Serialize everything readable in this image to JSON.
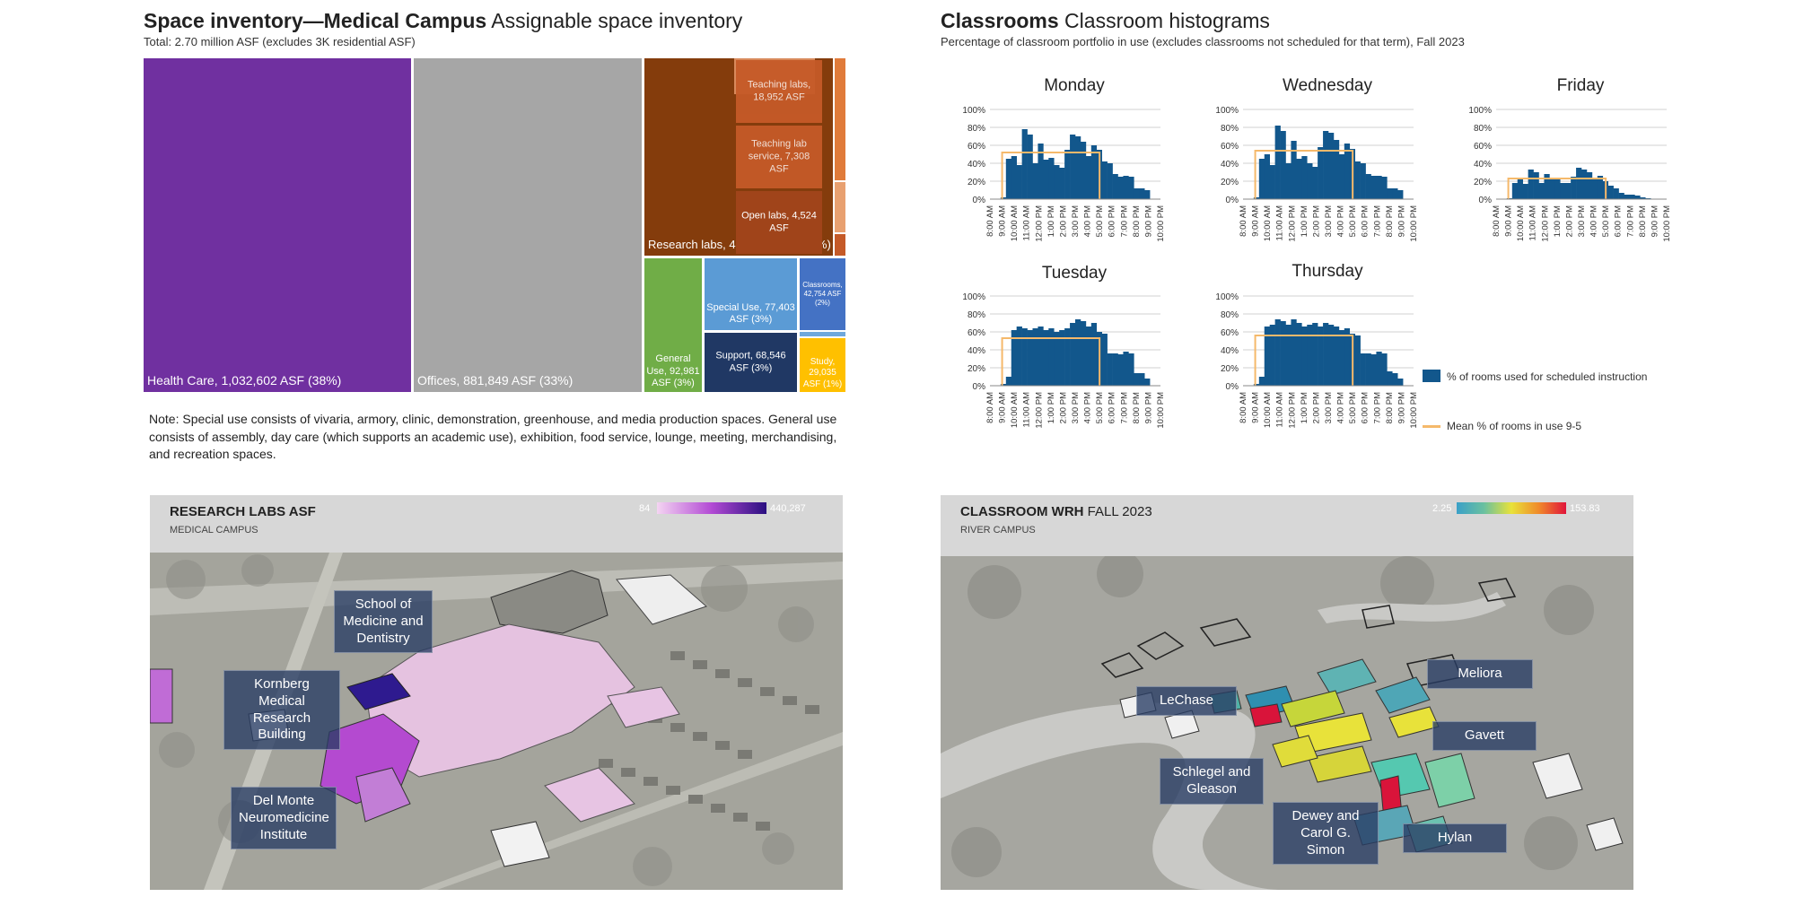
{
  "space": {
    "title_bold": "Space inventory—Medical Campus",
    "title_rest": " Assignable space inventory",
    "subtitle": "Total: 2.70 million ASF (excludes 3K residential ASF)",
    "note": "Note: Special use consists of vivaria, armory, clinic, demonstration, greenhouse, and media production spaces. General use consists of assembly, day care (which supports an academic use), exhibition, food service, lounge, meeting, merchandising, and recreation spaces."
  },
  "classrooms": {
    "title_bold": "Classrooms",
    "title_rest": " Classroom histograms",
    "subtitle": "Percentage of classroom portfolio in use (excludes classrooms not scheduled for that term), Fall 2023",
    "legend_bar": "% of rooms used for scheduled instruction",
    "legend_mean": "Mean % of rooms in use 9-5",
    "bar_color": "#12578c",
    "mean_color": "#f5b96b"
  },
  "research_map": {
    "title": "RESEARCH LABS ASF",
    "subtitle": "MEDICAL CAMPUS",
    "legend_min": "84",
    "legend_max": "440,287",
    "callouts": [
      "School of Medicine and Dentistry",
      "Kornberg Medical Research Building",
      "Del Monte Neuromedicine Institute"
    ]
  },
  "wrh_map": {
    "title": "CLASSROOM WRH",
    "title_suffix": " FALL 2023",
    "subtitle": "RIVER CAMPUS",
    "legend_min": "2.25",
    "legend_max": "153.83",
    "callouts": [
      "Meliora",
      "LeChase",
      "Gavett",
      "Schlegel and Gleason",
      "Dewey and Carol G. Simon",
      "Hylan"
    ]
  },
  "chart_data": [
    {
      "type": "treemap",
      "title": "Space inventory—Medical Campus Assignable space inventory",
      "unit": "ASF",
      "items": [
        {
          "label": "Health Care, 1,032,602 ASF (38%)",
          "value": 1032602,
          "color": "#7030a0"
        },
        {
          "label": "Offices, 881,849 ASF (33%)",
          "value": 881849,
          "color": "#a6a6a6"
        },
        {
          "label": "Research labs, 434,818 ASF (16%)",
          "value": 434818,
          "color": "#843c0c"
        },
        {
          "label": "Teaching labs, 18,952 ASF",
          "value": 18952,
          "color": "#c55a28"
        },
        {
          "label": "Teaching lab service, 7,308 ASF",
          "value": 7308,
          "color": "#c55a28"
        },
        {
          "label": "Open labs, 4,524 ASF",
          "value": 4524,
          "color": "#a0441a"
        },
        {
          "label": "General Use, 92,981 ASF (3%)",
          "value": 92981,
          "color": "#70ad47"
        },
        {
          "label": "Special Use, 77,403 ASF (3%)",
          "value": 77403,
          "color": "#5b9bd5"
        },
        {
          "label": "Support, 68,546 ASF (3%)",
          "value": 68546,
          "color": "#203864"
        },
        {
          "label": "Classrooms, 42,754 ASF (2%)",
          "value": 42754,
          "color": "#4472c4"
        },
        {
          "label": "Study, 29,035 ASF (1%)",
          "value": 29035,
          "color": "#ffc000"
        }
      ]
    },
    {
      "type": "bar",
      "title": "Monday",
      "ylim": [
        0,
        100
      ],
      "yticks": [
        "0%",
        "20%",
        "40%",
        "60%",
        "80%",
        "100%"
      ],
      "xticks": [
        "8:00 AM",
        "9:00 AM",
        "10:00 AM",
        "11:00 AM",
        "12:00 PM",
        "1:00 PM",
        "2:00 PM",
        "3:00 PM",
        "4:00 PM",
        "5:00 PM",
        "6:00 PM",
        "7:00 PM",
        "8:00 PM",
        "9:00 PM",
        "10:00 PM"
      ],
      "series": [
        {
          "name": "% of rooms used for scheduled instruction",
          "values": [
            0,
            0,
            2,
            45,
            48,
            38,
            78,
            72,
            40,
            62,
            44,
            46,
            38,
            35,
            55,
            72,
            70,
            64,
            48,
            60,
            55,
            42,
            40,
            28,
            25,
            26,
            25,
            12,
            12,
            10,
            0,
            0
          ]
        },
        {
          "name": "Mean % of rooms in use 9-5",
          "values": [
            52
          ]
        }
      ]
    },
    {
      "type": "bar",
      "title": "Wednesday",
      "ylim": [
        0,
        100
      ],
      "yticks": [
        "0%",
        "20%",
        "40%",
        "60%",
        "80%",
        "100%"
      ],
      "xticks": [
        "8:00 AM",
        "9:00 AM",
        "10:00 AM",
        "11:00 AM",
        "12:00 PM",
        "1:00 PM",
        "2:00 PM",
        "3:00 PM",
        "4:00 PM",
        "5:00 PM",
        "6:00 PM",
        "7:00 PM",
        "8:00 PM",
        "9:00 PM",
        "10:00 PM"
      ],
      "series": [
        {
          "name": "% of rooms used for scheduled instruction",
          "values": [
            0,
            0,
            2,
            45,
            50,
            38,
            82,
            76,
            40,
            65,
            45,
            48,
            40,
            36,
            58,
            76,
            74,
            66,
            50,
            62,
            56,
            42,
            40,
            28,
            26,
            26,
            25,
            12,
            12,
            10,
            0,
            0
          ]
        },
        {
          "name": "Mean % of rooms in use 9-5",
          "values": [
            54
          ]
        }
      ]
    },
    {
      "type": "bar",
      "title": "Friday",
      "ylim": [
        0,
        100
      ],
      "yticks": [
        "0%",
        "20%",
        "40%",
        "60%",
        "80%",
        "100%"
      ],
      "xticks": [
        "8:00 AM",
        "9:00 AM",
        "10:00 AM",
        "11:00 AM",
        "12:00 PM",
        "1:00 PM",
        "2:00 PM",
        "3:00 PM",
        "4:00 PM",
        "5:00 PM",
        "6:00 PM",
        "7:00 PM",
        "8:00 PM",
        "9:00 PM",
        "10:00 PM"
      ],
      "series": [
        {
          "name": "% of rooms used for scheduled instruction",
          "values": [
            0,
            0,
            1,
            18,
            22,
            17,
            33,
            30,
            18,
            28,
            22,
            22,
            18,
            18,
            25,
            35,
            33,
            30,
            22,
            26,
            20,
            15,
            12,
            7,
            5,
            5,
            4,
            2,
            1,
            0,
            0,
            0
          ]
        },
        {
          "name": "Mean % of rooms in use 9-5",
          "values": [
            23
          ]
        }
      ]
    },
    {
      "type": "bar",
      "title": "Tuesday",
      "ylim": [
        0,
        100
      ],
      "yticks": [
        "0%",
        "20%",
        "40%",
        "60%",
        "80%",
        "100%"
      ],
      "xticks": [
        "8:00 AM",
        "9:00 AM",
        "10:00 AM",
        "11:00 AM",
        "12:00 PM",
        "1:00 PM",
        "2:00 PM",
        "3:00 PM",
        "4:00 PM",
        "5:00 PM",
        "6:00 PM",
        "7:00 PM",
        "8:00 PM",
        "9:00 PM",
        "10:00 PM"
      ],
      "series": [
        {
          "name": "% of rooms used for scheduled instruction",
          "values": [
            0,
            0,
            2,
            10,
            62,
            66,
            64,
            62,
            64,
            66,
            62,
            64,
            60,
            62,
            64,
            70,
            74,
            72,
            66,
            70,
            60,
            58,
            36,
            36,
            35,
            38,
            36,
            14,
            14,
            8,
            0,
            0
          ]
        },
        {
          "name": "Mean % of rooms in use 9-5",
          "values": [
            53
          ]
        }
      ]
    },
    {
      "type": "bar",
      "title": "Thursday",
      "ylim": [
        0,
        100
      ],
      "yticks": [
        "0%",
        "20%",
        "40%",
        "60%",
        "80%",
        "100%"
      ],
      "xticks": [
        "8:00 AM",
        "9:00 AM",
        "10:00 AM",
        "11:00 AM",
        "12:00 PM",
        "1:00 PM",
        "2:00 PM",
        "3:00 PM",
        "4:00 PM",
        "5:00 PM",
        "6:00 PM",
        "7:00 PM",
        "8:00 PM",
        "9:00 PM",
        "10:00 PM"
      ],
      "series": [
        {
          "name": "% of rooms used for scheduled instruction",
          "values": [
            0,
            0,
            2,
            10,
            66,
            68,
            74,
            72,
            68,
            74,
            70,
            66,
            68,
            70,
            66,
            70,
            68,
            66,
            62,
            64,
            58,
            56,
            36,
            36,
            35,
            38,
            36,
            16,
            14,
            8,
            0,
            0
          ]
        },
        {
          "name": "Mean % of rooms in use 9-5",
          "values": [
            56
          ]
        }
      ]
    }
  ]
}
